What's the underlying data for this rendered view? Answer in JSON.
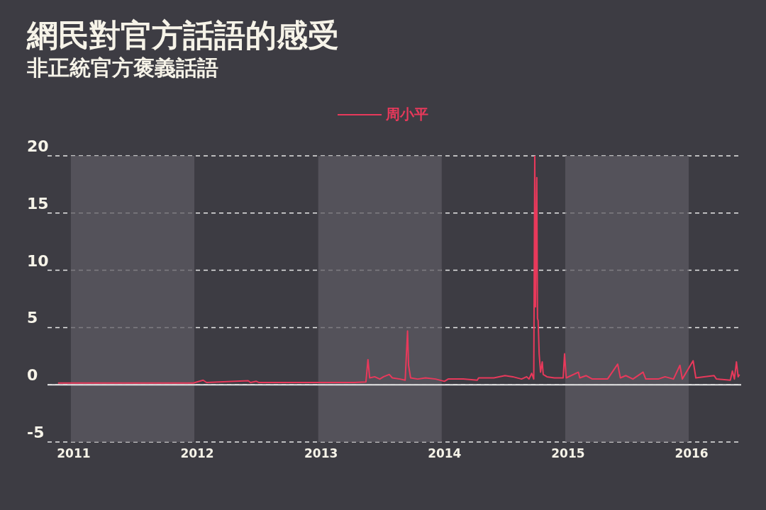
{
  "chart_data": {
    "type": "line",
    "title": "網民對官方話語的感受",
    "subtitle": "非正統官方褒義話語",
    "series": [
      {
        "name": "周小平",
        "color": "#e8395b",
        "x": [
          "2010-11-24",
          "2011-12-29",
          "2012-01-27",
          "2012-02-06",
          "2012-06-08",
          "2012-06-15",
          "2012-07-02",
          "2012-07-09",
          "2012-09-06",
          "2013-02-14",
          "2013-04-18",
          "2013-05-22",
          "2013-05-28",
          "2013-06-02",
          "2013-06-17",
          "2013-07-02",
          "2013-07-13",
          "2013-07-30",
          "2013-08-08",
          "2013-08-31",
          "2013-09-15",
          "2013-09-22",
          "2013-09-25",
          "2013-10-01",
          "2013-10-22",
          "2013-11-14",
          "2013-12-14",
          "2014-01-09",
          "2014-01-20",
          "2014-03-06",
          "2014-04-16",
          "2014-04-20",
          "2014-06-04",
          "2014-07-07",
          "2014-07-30",
          "2014-08-25",
          "2014-09-09",
          "2014-09-16",
          "2014-09-24",
          "2014-09-30",
          "2014-10-03",
          "2014-10-05",
          "2014-10-09",
          "2014-10-11",
          "2014-10-13",
          "2014-10-16",
          "2014-10-20",
          "2014-10-25",
          "2014-10-28",
          "2014-11-08",
          "2014-11-30",
          "2014-12-26",
          "2014-12-30",
          "2015-01-04",
          "2015-02-09",
          "2015-02-13",
          "2015-03-04",
          "2015-03-22",
          "2015-05-06",
          "2015-06-05",
          "2015-06-13",
          "2015-06-29",
          "2015-07-20",
          "2015-08-19",
          "2015-08-27",
          "2015-10-03",
          "2015-10-23",
          "2015-11-17",
          "2015-12-06",
          "2015-12-13",
          "2016-01-14",
          "2016-01-22",
          "2016-02-15",
          "2016-03-16",
          "2016-03-23",
          "2016-05-03",
          "2016-05-09",
          "2016-05-15",
          "2016-05-21",
          "2016-05-26",
          "2016-05-30"
        ],
        "values": [
          0.15,
          0.15,
          0.4,
          0.2,
          0.35,
          0.2,
          0.3,
          0.2,
          0.2,
          0.2,
          0.2,
          0.25,
          2.2,
          0.6,
          0.7,
          0.5,
          0.7,
          0.9,
          0.6,
          0.5,
          0.4,
          4.7,
          1.7,
          0.6,
          0.5,
          0.6,
          0.5,
          0.3,
          0.5,
          0.5,
          0.4,
          0.6,
          0.6,
          0.8,
          0.7,
          0.5,
          0.7,
          0.5,
          1.0,
          0.5,
          20.0,
          6.8,
          18.1,
          5.8,
          5.6,
          2.7,
          1.1,
          2.0,
          0.9,
          0.7,
          0.6,
          0.6,
          2.7,
          0.6,
          1.1,
          0.6,
          0.8,
          0.5,
          0.5,
          1.8,
          0.6,
          0.8,
          0.5,
          1.1,
          0.5,
          0.5,
          0.7,
          0.5,
          1.7,
          0.5,
          2.1,
          0.6,
          0.7,
          0.8,
          0.5,
          0.4,
          1.2,
          0.5,
          2.0,
          0.7,
          0.9
        ]
      }
    ],
    "xlim": [
      "2010-10-24",
      "2016-06-04"
    ],
    "xticks": [
      {
        "value": "2011-01-01",
        "label": "2011"
      },
      {
        "value": "2012-01-01",
        "label": "2012"
      },
      {
        "value": "2013-01-01",
        "label": "2013"
      },
      {
        "value": "2014-01-01",
        "label": "2014"
      },
      {
        "value": "2015-01-01",
        "label": "2015"
      },
      {
        "value": "2016-01-01",
        "label": "2016"
      }
    ],
    "ylim": [
      -5,
      20
    ],
    "yticks": [
      -5,
      0,
      5,
      10,
      15,
      20
    ],
    "grid": "y",
    "legend": "top",
    "marker": "none",
    "line_style": "solid",
    "bands": [
      {
        "axis": "x",
        "from": "2011-01-01",
        "to": "2012-01-01",
        "color": "#5c5a61"
      },
      {
        "axis": "x",
        "from": "2013-01-01",
        "to": "2014-01-01",
        "color": "#5c5a61"
      },
      {
        "axis": "x",
        "from": "2015-01-01",
        "to": "2016-01-01",
        "color": "#5c5a61"
      }
    ],
    "ref_lines": [
      {
        "axis": "y",
        "value": 0,
        "color": "#e6e6e6"
      }
    ]
  }
}
